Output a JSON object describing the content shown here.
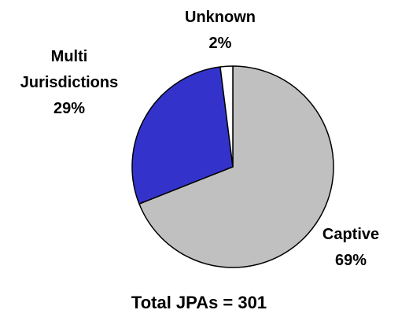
{
  "chart_data": {
    "type": "pie",
    "title": "Total JPAs = 301",
    "categories": [
      "Captive",
      "Multi Jurisdictions",
      "Unknown"
    ],
    "values": [
      69,
      29,
      2
    ],
    "value_labels": [
      "69%",
      "29%",
      "2%"
    ],
    "colors": [
      "#c0c0c0",
      "#3333cc",
      "#ffffff"
    ]
  }
}
